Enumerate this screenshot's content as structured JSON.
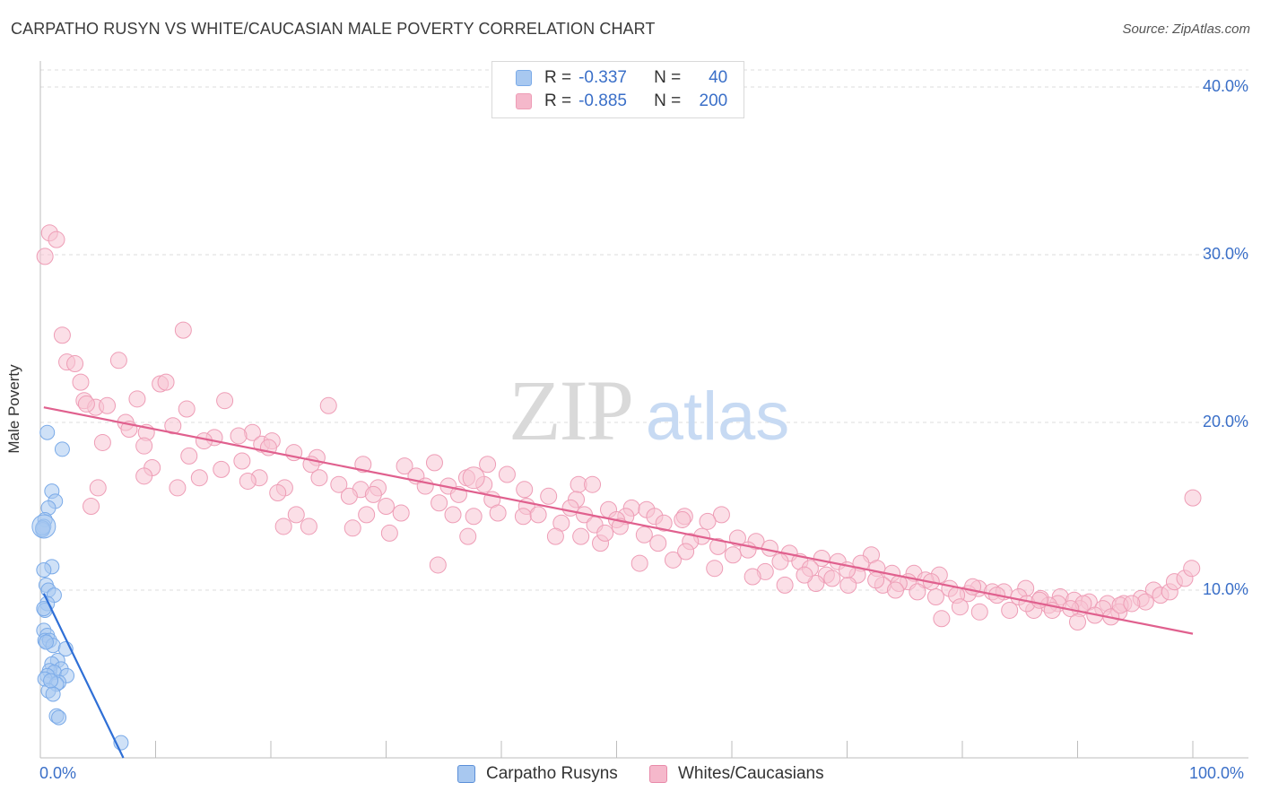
{
  "title": "CARPATHO RUSYN VS WHITE/CAUCASIAN MALE POVERTY CORRELATION CHART",
  "source": "Source: ZipAtlas.com",
  "watermark": {
    "zip": "ZIP",
    "atlas": "atlas"
  },
  "legend": {
    "rows": [
      {
        "r_label": "R =",
        "r_value": "-0.337",
        "n_label": "N =",
        "n_value": "40",
        "color": "#a8c8f0"
      },
      {
        "r_label": "R =",
        "r_value": "-0.885",
        "n_label": "N =",
        "n_value": "200",
        "color": "#f5b8cb"
      }
    ]
  },
  "bottom_legend": {
    "items": [
      {
        "label": "Carpatho Rusyns",
        "color": "#a8c8f0"
      },
      {
        "label": "Whites/Caucasians",
        "color": "#f5b8cb"
      }
    ]
  },
  "chart_data": {
    "type": "scatter",
    "title": "CARPATHO RUSYN VS WHITE/CAUCASIAN MALE POVERTY CORRELATION CHART",
    "xlabel": "",
    "ylabel": "Male Poverty",
    "xlim": [
      0,
      100
    ],
    "ylim": [
      0,
      40
    ],
    "x_tick_labels": [
      "0.0%",
      "100.0%"
    ],
    "y_tick_labels": [
      "40.0%",
      "30.0%",
      "20.0%",
      "10.0%"
    ],
    "y_ticks": [
      40,
      30,
      20,
      10
    ],
    "grid": true,
    "series": [
      {
        "name": "Carpatho Rusyns",
        "color": "#7aaae8",
        "fill": "#a8c8f0",
        "r": -0.337,
        "n": 40,
        "trend": {
          "x": [
            0.3,
            7.2
          ],
          "y": [
            9.8,
            0.0
          ],
          "color": "#2f6fd6"
        },
        "points": [
          [
            0.6,
            19.4
          ],
          [
            1.9,
            18.4
          ],
          [
            1.0,
            15.9
          ],
          [
            1.3,
            15.3
          ],
          [
            0.7,
            14.9
          ],
          [
            0.4,
            14.2
          ],
          [
            0.3,
            13.8
          ],
          [
            0.2,
            13.6
          ],
          [
            1.0,
            11.4
          ],
          [
            0.3,
            11.2
          ],
          [
            0.5,
            10.3
          ],
          [
            0.7,
            10.0
          ],
          [
            1.2,
            9.7
          ],
          [
            0.6,
            9.2
          ],
          [
            0.4,
            8.8
          ],
          [
            0.3,
            7.6
          ],
          [
            0.6,
            7.3
          ],
          [
            0.4,
            7.0
          ],
          [
            0.8,
            7.0
          ],
          [
            1.1,
            6.7
          ],
          [
            2.2,
            6.5
          ],
          [
            1.5,
            5.8
          ],
          [
            1.0,
            5.6
          ],
          [
            1.8,
            5.3
          ],
          [
            0.8,
            5.2
          ],
          [
            1.2,
            5.1
          ],
          [
            0.6,
            4.9
          ],
          [
            2.3,
            4.9
          ],
          [
            0.4,
            4.7
          ],
          [
            1.6,
            4.5
          ],
          [
            1.4,
            4.4
          ],
          [
            0.7,
            4.0
          ],
          [
            1.1,
            3.8
          ],
          [
            1.4,
            2.5
          ],
          [
            1.6,
            2.4
          ],
          [
            7.0,
            0.9
          ],
          [
            0.2,
            13.7
          ],
          [
            0.5,
            6.9
          ],
          [
            0.9,
            4.6
          ],
          [
            0.3,
            8.9
          ]
        ],
        "large_points": [
          [
            0.3,
            13.8
          ]
        ]
      },
      {
        "name": "Whites/Caucasians",
        "color": "#ee9db6",
        "fill": "#f8c4d4",
        "r": -0.885,
        "n": 200,
        "trend": {
          "x": [
            0.3,
            100
          ],
          "y": [
            20.9,
            7.4
          ],
          "color": "#e0608e"
        },
        "points": [
          [
            0.8,
            31.3
          ],
          [
            1.4,
            30.9
          ],
          [
            0.4,
            29.9
          ],
          [
            12.4,
            25.5
          ],
          [
            1.9,
            25.2
          ],
          [
            2.3,
            23.6
          ],
          [
            3.0,
            23.5
          ],
          [
            6.8,
            23.7
          ],
          [
            3.5,
            22.4
          ],
          [
            10.4,
            22.3
          ],
          [
            10.9,
            22.4
          ],
          [
            3.8,
            21.3
          ],
          [
            8.4,
            21.4
          ],
          [
            4.8,
            20.9
          ],
          [
            5.8,
            21.0
          ],
          [
            16.0,
            21.3
          ],
          [
            25.0,
            21.0
          ],
          [
            12.7,
            20.8
          ],
          [
            7.4,
            20.0
          ],
          [
            11.5,
            19.8
          ],
          [
            9.2,
            19.4
          ],
          [
            7.7,
            19.6
          ],
          [
            18.4,
            19.4
          ],
          [
            15.1,
            19.1
          ],
          [
            17.2,
            19.2
          ],
          [
            14.2,
            18.9
          ],
          [
            5.4,
            18.8
          ],
          [
            9.0,
            18.6
          ],
          [
            19.2,
            18.7
          ],
          [
            20.1,
            18.9
          ],
          [
            19.8,
            18.5
          ],
          [
            22.0,
            18.2
          ],
          [
            24.0,
            17.9
          ],
          [
            12.9,
            18.0
          ],
          [
            17.5,
            17.7
          ],
          [
            9.7,
            17.3
          ],
          [
            15.7,
            17.2
          ],
          [
            28.0,
            17.5
          ],
          [
            31.6,
            17.4
          ],
          [
            34.2,
            17.6
          ],
          [
            38.8,
            17.5
          ],
          [
            23.5,
            17.5
          ],
          [
            13.8,
            16.7
          ],
          [
            19.0,
            16.7
          ],
          [
            18.0,
            16.5
          ],
          [
            24.2,
            16.7
          ],
          [
            32.6,
            16.8
          ],
          [
            37.0,
            16.7
          ],
          [
            40.5,
            16.9
          ],
          [
            46.7,
            16.3
          ],
          [
            5.0,
            16.1
          ],
          [
            11.9,
            16.1
          ],
          [
            21.2,
            16.1
          ],
          [
            25.9,
            16.3
          ],
          [
            27.8,
            16.0
          ],
          [
            29.3,
            16.1
          ],
          [
            33.4,
            16.2
          ],
          [
            35.4,
            16.2
          ],
          [
            38.5,
            16.3
          ],
          [
            42.0,
            16.0
          ],
          [
            20.6,
            15.8
          ],
          [
            26.8,
            15.6
          ],
          [
            28.9,
            15.7
          ],
          [
            36.3,
            15.7
          ],
          [
            39.2,
            15.4
          ],
          [
            44.1,
            15.6
          ],
          [
            46.5,
            15.4
          ],
          [
            4.4,
            15.0
          ],
          [
            30.0,
            15.0
          ],
          [
            34.6,
            15.2
          ],
          [
            42.2,
            15.0
          ],
          [
            46.0,
            14.9
          ],
          [
            49.3,
            14.8
          ],
          [
            51.3,
            14.9
          ],
          [
            52.6,
            14.8
          ],
          [
            39.7,
            14.6
          ],
          [
            31.3,
            14.6
          ],
          [
            35.8,
            14.5
          ],
          [
            22.2,
            14.5
          ],
          [
            28.3,
            14.5
          ],
          [
            37.6,
            14.4
          ],
          [
            41.9,
            14.4
          ],
          [
            43.2,
            14.5
          ],
          [
            47.2,
            14.5
          ],
          [
            50.8,
            14.4
          ],
          [
            53.3,
            14.4
          ],
          [
            55.9,
            14.4
          ],
          [
            59.1,
            14.5
          ],
          [
            50.0,
            14.2
          ],
          [
            55.7,
            14.2
          ],
          [
            57.9,
            14.1
          ],
          [
            54.1,
            14.0
          ],
          [
            45.2,
            14.0
          ],
          [
            48.1,
            13.9
          ],
          [
            50.3,
            13.8
          ],
          [
            21.1,
            13.8
          ],
          [
            23.3,
            13.8
          ],
          [
            27.1,
            13.7
          ],
          [
            30.3,
            13.4
          ],
          [
            44.7,
            13.2
          ],
          [
            37.1,
            13.2
          ],
          [
            46.9,
            13.2
          ],
          [
            52.4,
            13.3
          ],
          [
            57.4,
            13.2
          ],
          [
            60.5,
            13.1
          ],
          [
            62.1,
            12.9
          ],
          [
            56.4,
            12.9
          ],
          [
            48.6,
            12.8
          ],
          [
            53.6,
            12.8
          ],
          [
            58.8,
            12.6
          ],
          [
            61.4,
            12.4
          ],
          [
            63.3,
            12.5
          ],
          [
            65.0,
            12.2
          ],
          [
            60.1,
            12.1
          ],
          [
            67.8,
            11.9
          ],
          [
            72.1,
            12.1
          ],
          [
            65.9,
            11.7
          ],
          [
            69.2,
            11.7
          ],
          [
            71.2,
            11.6
          ],
          [
            54.9,
            11.8
          ],
          [
            64.2,
            11.7
          ],
          [
            66.8,
            11.3
          ],
          [
            62.9,
            11.1
          ],
          [
            72.6,
            11.3
          ],
          [
            73.9,
            11.0
          ],
          [
            75.8,
            11.0
          ],
          [
            68.2,
            10.9
          ],
          [
            70.9,
            10.9
          ],
          [
            34.5,
            11.5
          ],
          [
            78.0,
            10.9
          ],
          [
            76.8,
            10.6
          ],
          [
            75.3,
            10.5
          ],
          [
            74.5,
            10.4
          ],
          [
            77.3,
            10.5
          ],
          [
            70.1,
            10.3
          ],
          [
            73.1,
            10.3
          ],
          [
            67.3,
            10.4
          ],
          [
            78.9,
            10.1
          ],
          [
            81.4,
            10.1
          ],
          [
            80.5,
            9.8
          ],
          [
            82.6,
            9.9
          ],
          [
            79.5,
            9.7
          ],
          [
            83.6,
            9.9
          ],
          [
            85.5,
            10.1
          ],
          [
            84.9,
            9.6
          ],
          [
            77.7,
            9.6
          ],
          [
            76.1,
            9.9
          ],
          [
            86.8,
            9.5
          ],
          [
            88.5,
            9.6
          ],
          [
            89.7,
            9.4
          ],
          [
            88.3,
            9.2
          ],
          [
            92.6,
            9.2
          ],
          [
            91.0,
            9.3
          ],
          [
            94.0,
            9.2
          ],
          [
            95.5,
            9.5
          ],
          [
            96.6,
            10.0
          ],
          [
            97.2,
            9.7
          ],
          [
            98.0,
            9.9
          ],
          [
            98.4,
            10.5
          ],
          [
            99.3,
            10.7
          ],
          [
            99.9,
            11.3
          ],
          [
            100.0,
            15.5
          ],
          [
            87.5,
            9.1
          ],
          [
            90.2,
            8.9
          ],
          [
            90.5,
            9.2
          ],
          [
            92.2,
            8.9
          ],
          [
            93.6,
            8.7
          ],
          [
            89.4,
            8.9
          ],
          [
            86.2,
            8.8
          ],
          [
            84.1,
            8.8
          ],
          [
            81.5,
            8.7
          ],
          [
            78.2,
            8.3
          ],
          [
            79.8,
            9.0
          ],
          [
            85.6,
            9.2
          ],
          [
            87.8,
            8.8
          ],
          [
            91.5,
            8.5
          ],
          [
            92.9,
            8.4
          ],
          [
            93.7,
            9.1
          ],
          [
            95.9,
            9.3
          ],
          [
            94.7,
            9.2
          ],
          [
            90.0,
            8.1
          ],
          [
            86.7,
            9.4
          ],
          [
            83.0,
            9.7
          ],
          [
            80.9,
            10.2
          ],
          [
            74.2,
            10.0
          ],
          [
            72.5,
            10.6
          ],
          [
            70.0,
            11.2
          ],
          [
            68.7,
            10.7
          ],
          [
            66.3,
            10.9
          ],
          [
            64.6,
            10.3
          ],
          [
            61.8,
            10.8
          ],
          [
            58.5,
            11.3
          ],
          [
            56.0,
            12.3
          ],
          [
            52.0,
            11.6
          ],
          [
            49.0,
            13.4
          ],
          [
            47.9,
            16.3
          ],
          [
            9.0,
            16.8
          ],
          [
            4.0,
            21.1
          ]
        ],
        "large_points": [
          [
            37.6,
            16.7
          ]
        ]
      }
    ]
  }
}
